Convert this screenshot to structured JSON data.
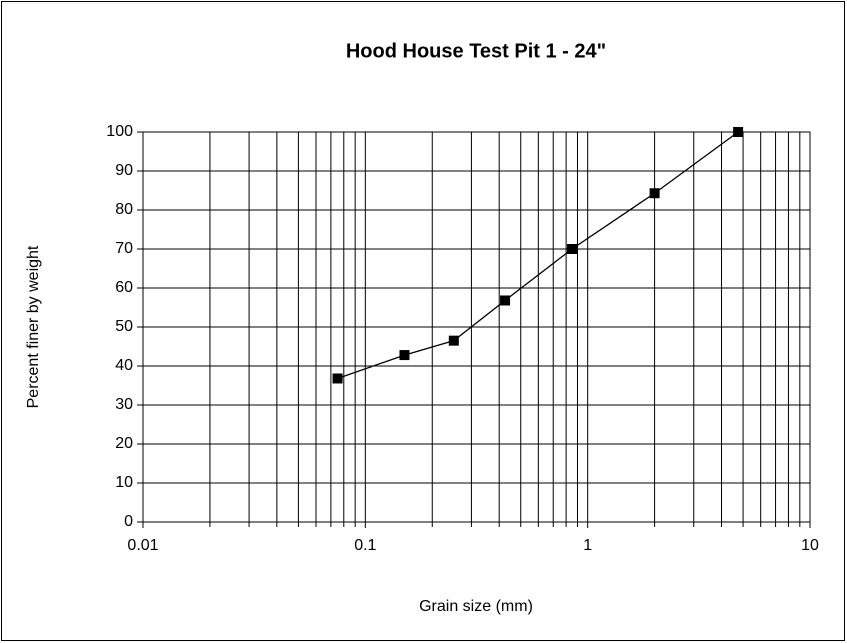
{
  "chart_data": {
    "type": "line",
    "title": "Hood House Test Pit 1 - 24\"",
    "x_label": "Grain size (mm)",
    "y_label": "Percent finer by weight",
    "x": [
      0.075,
      0.15,
      0.25,
      0.425,
      0.85,
      2,
      4.75
    ],
    "series": [
      {
        "name": "Percent finer",
        "color": "#000000",
        "values": [
          36.8,
          42.8,
          46.5,
          56.8,
          70,
          84.3,
          100
        ]
      }
    ],
    "xscale": "log",
    "xlim": [
      0.01,
      10
    ],
    "xticks": [
      0.01,
      0.1,
      1,
      10
    ],
    "xminorticks": [
      0.02,
      0.03,
      0.04,
      0.05,
      0.06,
      0.07,
      0.08,
      0.09,
      0.2,
      0.3,
      0.4,
      0.5,
      0.6,
      0.7,
      0.8,
      0.9,
      2,
      3,
      4,
      5,
      6,
      7,
      8,
      9
    ],
    "ylim": [
      0,
      100
    ],
    "yticks": [
      0,
      10,
      20,
      30,
      40,
      50,
      60,
      70,
      80,
      90,
      100
    ],
    "grid": true
  }
}
